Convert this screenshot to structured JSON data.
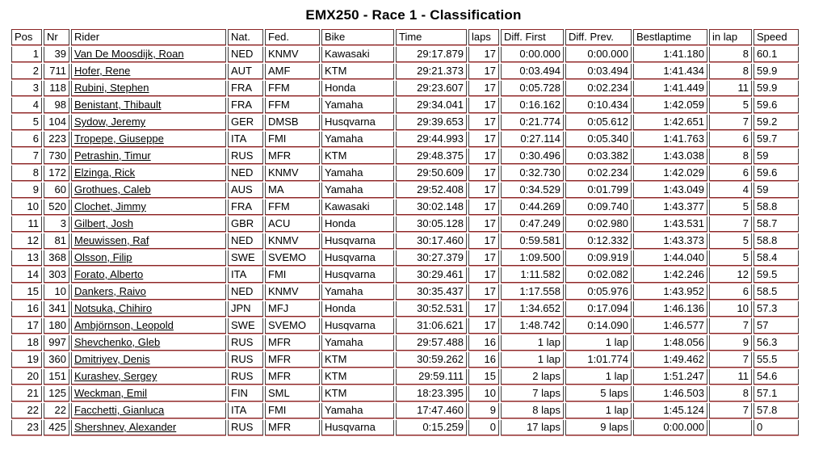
{
  "title": "EMX250 - Race 1 - Classification",
  "colors": {
    "border_red": "#8b2424",
    "border_red_light": "#d09c9c",
    "border_dark": "#3f3f3f",
    "text": "#000000",
    "background": "#ffffff"
  },
  "table": {
    "columns": [
      {
        "key": "pos",
        "label": "Pos",
        "align": "right"
      },
      {
        "key": "nr",
        "label": "Nr",
        "align": "right"
      },
      {
        "key": "rider",
        "label": "Rider",
        "align": "left"
      },
      {
        "key": "nat",
        "label": "Nat.",
        "align": "left"
      },
      {
        "key": "fed",
        "label": "Fed.",
        "align": "left"
      },
      {
        "key": "bike",
        "label": "Bike",
        "align": "left"
      },
      {
        "key": "time",
        "label": "Time",
        "align": "right"
      },
      {
        "key": "laps",
        "label": "laps",
        "align": "right"
      },
      {
        "key": "diff_first",
        "label": "Diff. First",
        "align": "right"
      },
      {
        "key": "diff_prev",
        "label": "Diff. Prev.",
        "align": "right"
      },
      {
        "key": "bestlaptime",
        "label": "Bestlaptime",
        "align": "right"
      },
      {
        "key": "in_lap",
        "label": "in lap",
        "align": "right"
      },
      {
        "key": "speed",
        "label": "Speed",
        "align": "left"
      }
    ],
    "rows": [
      {
        "pos": "1",
        "nr": "39",
        "rider": "Van De Moosdijk, Roan",
        "nat": "NED",
        "fed": "KNMV",
        "bike": "Kawasaki",
        "time": "29:17.879",
        "laps": "17",
        "diff_first": "0:00.000",
        "diff_prev": "0:00.000",
        "bestlaptime": "1:41.180",
        "in_lap": "8",
        "speed": "60.1"
      },
      {
        "pos": "2",
        "nr": "711",
        "rider": "Hofer, Rene",
        "nat": "AUT",
        "fed": "AMF",
        "bike": "KTM",
        "time": "29:21.373",
        "laps": "17",
        "diff_first": "0:03.494",
        "diff_prev": "0:03.494",
        "bestlaptime": "1:41.434",
        "in_lap": "8",
        "speed": "59.9"
      },
      {
        "pos": "3",
        "nr": "118",
        "rider": "Rubini, Stephen",
        "nat": "FRA",
        "fed": "FFM",
        "bike": "Honda",
        "time": "29:23.607",
        "laps": "17",
        "diff_first": "0:05.728",
        "diff_prev": "0:02.234",
        "bestlaptime": "1:41.449",
        "in_lap": "11",
        "speed": "59.9"
      },
      {
        "pos": "4",
        "nr": "98",
        "rider": "Benistant, Thibault",
        "nat": "FRA",
        "fed": "FFM",
        "bike": "Yamaha",
        "time": "29:34.041",
        "laps": "17",
        "diff_first": "0:16.162",
        "diff_prev": "0:10.434",
        "bestlaptime": "1:42.059",
        "in_lap": "5",
        "speed": "59.6"
      },
      {
        "pos": "5",
        "nr": "104",
        "rider": "Sydow, Jeremy",
        "nat": "GER",
        "fed": "DMSB",
        "bike": "Husqvarna",
        "time": "29:39.653",
        "laps": "17",
        "diff_first": "0:21.774",
        "diff_prev": "0:05.612",
        "bestlaptime": "1:42.651",
        "in_lap": "7",
        "speed": "59.2"
      },
      {
        "pos": "6",
        "nr": "223",
        "rider": "Tropepe, Giuseppe",
        "nat": "ITA",
        "fed": "FMI",
        "bike": "Yamaha",
        "time": "29:44.993",
        "laps": "17",
        "diff_first": "0:27.114",
        "diff_prev": "0:05.340",
        "bestlaptime": "1:41.763",
        "in_lap": "6",
        "speed": "59.7"
      },
      {
        "pos": "7",
        "nr": "730",
        "rider": "Petrashin, Timur",
        "nat": "RUS",
        "fed": "MFR",
        "bike": "KTM",
        "time": "29:48.375",
        "laps": "17",
        "diff_first": "0:30.496",
        "diff_prev": "0:03.382",
        "bestlaptime": "1:43.038",
        "in_lap": "8",
        "speed": "59"
      },
      {
        "pos": "8",
        "nr": "172",
        "rider": "Elzinga, Rick",
        "nat": "NED",
        "fed": "KNMV",
        "bike": "Yamaha",
        "time": "29:50.609",
        "laps": "17",
        "diff_first": "0:32.730",
        "diff_prev": "0:02.234",
        "bestlaptime": "1:42.029",
        "in_lap": "6",
        "speed": "59.6"
      },
      {
        "pos": "9",
        "nr": "60",
        "rider": "Grothues, Caleb",
        "nat": "AUS",
        "fed": "MA",
        "bike": "Yamaha",
        "time": "29:52.408",
        "laps": "17",
        "diff_first": "0:34.529",
        "diff_prev": "0:01.799",
        "bestlaptime": "1:43.049",
        "in_lap": "4",
        "speed": "59"
      },
      {
        "pos": "10",
        "nr": "520",
        "rider": "Clochet, Jimmy",
        "nat": "FRA",
        "fed": "FFM",
        "bike": "Kawasaki",
        "time": "30:02.148",
        "laps": "17",
        "diff_first": "0:44.269",
        "diff_prev": "0:09.740",
        "bestlaptime": "1:43.377",
        "in_lap": "5",
        "speed": "58.8"
      },
      {
        "pos": "11",
        "nr": "3",
        "rider": "Gilbert, Josh",
        "nat": "GBR",
        "fed": "ACU",
        "bike": "Honda",
        "time": "30:05.128",
        "laps": "17",
        "diff_first": "0:47.249",
        "diff_prev": "0:02.980",
        "bestlaptime": "1:43.531",
        "in_lap": "7",
        "speed": "58.7"
      },
      {
        "pos": "12",
        "nr": "81",
        "rider": "Meuwissen, Raf",
        "nat": "NED",
        "fed": "KNMV",
        "bike": "Husqvarna",
        "time": "30:17.460",
        "laps": "17",
        "diff_first": "0:59.581",
        "diff_prev": "0:12.332",
        "bestlaptime": "1:43.373",
        "in_lap": "5",
        "speed": "58.8"
      },
      {
        "pos": "13",
        "nr": "368",
        "rider": "Olsson, Filip",
        "nat": "SWE",
        "fed": "SVEMO",
        "bike": "Husqvarna",
        "time": "30:27.379",
        "laps": "17",
        "diff_first": "1:09.500",
        "diff_prev": "0:09.919",
        "bestlaptime": "1:44.040",
        "in_lap": "5",
        "speed": "58.4"
      },
      {
        "pos": "14",
        "nr": "303",
        "rider": "Forato, Alberto",
        "nat": "ITA",
        "fed": "FMI",
        "bike": "Husqvarna",
        "time": "30:29.461",
        "laps": "17",
        "diff_first": "1:11.582",
        "diff_prev": "0:02.082",
        "bestlaptime": "1:42.246",
        "in_lap": "12",
        "speed": "59.5"
      },
      {
        "pos": "15",
        "nr": "10",
        "rider": "Dankers, Raivo",
        "nat": "NED",
        "fed": "KNMV",
        "bike": "Yamaha",
        "time": "30:35.437",
        "laps": "17",
        "diff_first": "1:17.558",
        "diff_prev": "0:05.976",
        "bestlaptime": "1:43.952",
        "in_lap": "6",
        "speed": "58.5"
      },
      {
        "pos": "16",
        "nr": "341",
        "rider": "Notsuka, Chihiro",
        "nat": "JPN",
        "fed": "MFJ",
        "bike": "Honda",
        "time": "30:52.531",
        "laps": "17",
        "diff_first": "1:34.652",
        "diff_prev": "0:17.094",
        "bestlaptime": "1:46.136",
        "in_lap": "10",
        "speed": "57.3"
      },
      {
        "pos": "17",
        "nr": "180",
        "rider": "Ambjörnson, Leopold",
        "nat": "SWE",
        "fed": "SVEMO",
        "bike": "Husqvarna",
        "time": "31:06.621",
        "laps": "17",
        "diff_first": "1:48.742",
        "diff_prev": "0:14.090",
        "bestlaptime": "1:46.577",
        "in_lap": "7",
        "speed": "57"
      },
      {
        "pos": "18",
        "nr": "997",
        "rider": "Shevchenko, Gleb",
        "nat": "RUS",
        "fed": "MFR",
        "bike": "Yamaha",
        "time": "29:57.488",
        "laps": "16",
        "diff_first": "1 lap",
        "diff_prev": "1 lap",
        "bestlaptime": "1:48.056",
        "in_lap": "9",
        "speed": "56.3"
      },
      {
        "pos": "19",
        "nr": "360",
        "rider": "Dmitriyev, Denis",
        "nat": "RUS",
        "fed": "MFR",
        "bike": "KTM",
        "time": "30:59.262",
        "laps": "16",
        "diff_first": "1 lap",
        "diff_prev": "1:01.774",
        "bestlaptime": "1:49.462",
        "in_lap": "7",
        "speed": "55.5"
      },
      {
        "pos": "20",
        "nr": "151",
        "rider": "Kurashev, Sergey",
        "nat": "RUS",
        "fed": "MFR",
        "bike": "KTM",
        "time": "29:59.111",
        "laps": "15",
        "diff_first": "2 laps",
        "diff_prev": "1 lap",
        "bestlaptime": "1:51.247",
        "in_lap": "11",
        "speed": "54.6"
      },
      {
        "pos": "21",
        "nr": "125",
        "rider": "Weckman, Emil",
        "nat": "FIN",
        "fed": "SML",
        "bike": "KTM",
        "time": "18:23.395",
        "laps": "10",
        "diff_first": "7 laps",
        "diff_prev": "5 laps",
        "bestlaptime": "1:46.503",
        "in_lap": "8",
        "speed": "57.1"
      },
      {
        "pos": "22",
        "nr": "22",
        "rider": "Facchetti, Gianluca",
        "nat": "ITA",
        "fed": "FMI",
        "bike": "Yamaha",
        "time": "17:47.460",
        "laps": "9",
        "diff_first": "8 laps",
        "diff_prev": "1 lap",
        "bestlaptime": "1:45.124",
        "in_lap": "7",
        "speed": "57.8"
      },
      {
        "pos": "23",
        "nr": "425",
        "rider": "Shershnev, Alexander",
        "nat": "RUS",
        "fed": "MFR",
        "bike": "Husqvarna",
        "time": "0:15.259",
        "laps": "0",
        "diff_first": "17 laps",
        "diff_prev": "9 laps",
        "bestlaptime": "0:00.000",
        "in_lap": "",
        "speed": "0"
      }
    ]
  }
}
